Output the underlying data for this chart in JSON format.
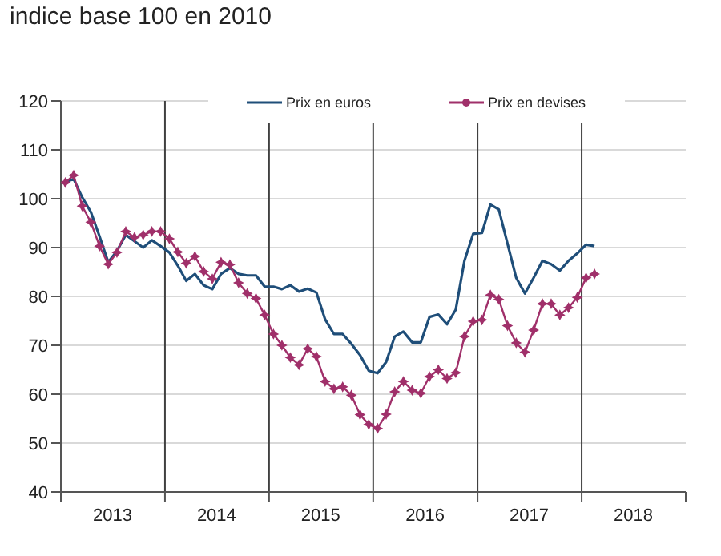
{
  "chart_data": {
    "type": "line",
    "title": "indice base 100 en 2010",
    "x": [
      "2013-01",
      "2013-02",
      "2013-03",
      "2013-04",
      "2013-05",
      "2013-06",
      "2013-07",
      "2013-08",
      "2013-09",
      "2013-10",
      "2013-11",
      "2013-12",
      "2014-01",
      "2014-02",
      "2014-03",
      "2014-04",
      "2014-05",
      "2014-06",
      "2014-07",
      "2014-08",
      "2014-09",
      "2014-10",
      "2014-11",
      "2014-12",
      "2015-01",
      "2015-02",
      "2015-03",
      "2015-04",
      "2015-05",
      "2015-06",
      "2015-07",
      "2015-08",
      "2015-09",
      "2015-10",
      "2015-11",
      "2015-12",
      "2016-01",
      "2016-02",
      "2016-03",
      "2016-04",
      "2016-05",
      "2016-06",
      "2016-07",
      "2016-08",
      "2016-09",
      "2016-10",
      "2016-11",
      "2016-12",
      "2017-01",
      "2017-02",
      "2017-03",
      "2017-04",
      "2017-05",
      "2017-06",
      "2017-07",
      "2017-08",
      "2017-09",
      "2017-10",
      "2017-11",
      "2017-12",
      "2018-01",
      "2018-02"
    ],
    "series": [
      {
        "name": "Prix en euros",
        "color": "#1f4e79",
        "marker": "none",
        "values": [
          103.5,
          104,
          100.3,
          97.3,
          92.3,
          87,
          89.3,
          92.6,
          91.3,
          90,
          91.5,
          90.3,
          89,
          86.3,
          83.2,
          84.6,
          82.3,
          81.5,
          84.6,
          85.8,
          84.6,
          84.3,
          84.3,
          82,
          82,
          81.5,
          82.3,
          81,
          81.6,
          80.8,
          75.3,
          72.3,
          72.3,
          70.3,
          68,
          64.8,
          64.3,
          66.6,
          71.8,
          72.8,
          70.6,
          70.6,
          75.8,
          76.3,
          74.3,
          77.3,
          87.3,
          92.8,
          93,
          98.8,
          97.8,
          90.8,
          83.8,
          80.6,
          83.8,
          87.3,
          86.6,
          85.3,
          87.3,
          88.8,
          90.6,
          90.3
        ]
      },
      {
        "name": "Prix en devises",
        "color": "#a0306a",
        "marker": "star",
        "values": [
          103.3,
          104.8,
          98.5,
          95.2,
          90.3,
          86.6,
          89,
          93.3,
          92.1,
          92.6,
          93.3,
          93.3,
          91.8,
          89.1,
          86.8,
          88.2,
          85.1,
          83.6,
          87,
          86.5,
          82.8,
          80.6,
          79.6,
          76.2,
          72.3,
          70,
          67.5,
          66,
          69.3,
          67.7,
          62.6,
          61.1,
          61.5,
          59.8,
          55.8,
          53.8,
          53,
          55.9,
          60.5,
          62.6,
          60.8,
          60.2,
          63.6,
          65,
          63.2,
          64.4,
          71.8,
          74.9,
          75.2,
          80.3,
          79.4,
          74,
          70.5,
          68.6,
          73.1,
          78.5,
          78.5,
          76.2,
          77.7,
          79.8,
          83.8,
          84.6
        ]
      }
    ],
    "xlim": [
      "2013-01",
      "2019-01"
    ],
    "xticks": [
      {
        "value": "2013-01",
        "label": null
      },
      {
        "value": "2013-07",
        "label": "2013"
      },
      {
        "value": "2014-01",
        "label": null
      },
      {
        "value": "2014-07",
        "label": "2014"
      },
      {
        "value": "2015-01",
        "label": null
      },
      {
        "value": "2015-07",
        "label": "2015"
      },
      {
        "value": "2016-01",
        "label": null
      },
      {
        "value": "2016-07",
        "label": "2016"
      },
      {
        "value": "2017-01",
        "label": null
      },
      {
        "value": "2017-07",
        "label": "2017"
      },
      {
        "value": "2018-01",
        "label": null
      },
      {
        "value": "2018-07",
        "label": "2018"
      },
      {
        "value": "2019-01",
        "label": null
      }
    ],
    "ylim": [
      40,
      120
    ],
    "yticks": [
      40,
      50,
      60,
      70,
      80,
      90,
      100,
      110,
      120
    ],
    "ref_lines": [
      {
        "axis": "x",
        "value": "2014-01",
        "color": "#404040"
      },
      {
        "axis": "x",
        "value": "2015-01",
        "color": "#404040"
      },
      {
        "axis": "x",
        "value": "2016-01",
        "color": "#404040"
      },
      {
        "axis": "x",
        "value": "2017-01",
        "color": "#404040"
      },
      {
        "axis": "x",
        "value": "2018-01",
        "color": "#404040"
      }
    ],
    "grid": "y",
    "legend": "top",
    "line_style": "solid"
  }
}
